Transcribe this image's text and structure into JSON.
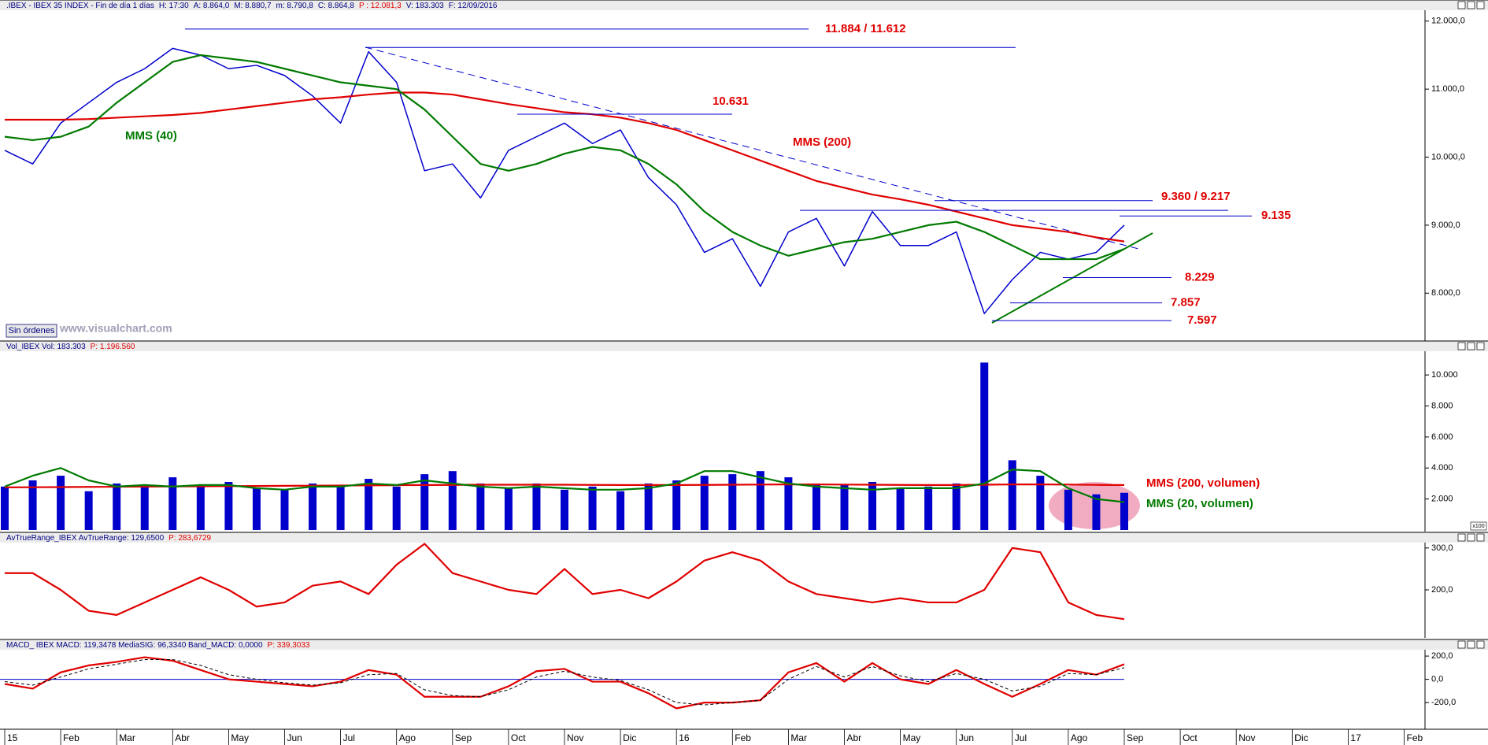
{
  "months": [
    "15",
    "Feb",
    "Mar",
    "Abr",
    "May",
    "Jun",
    "Jul",
    "Ago",
    "Sep",
    "Oct",
    "Nov",
    "Dic",
    "16",
    "Feb",
    "Mar",
    "Abr",
    "May",
    "Jun",
    "Jul",
    "Ago",
    "Sep",
    "Oct",
    "Nov",
    "Dic",
    "17",
    "Feb"
  ],
  "overlay": {
    "orders": "Sin órdenes",
    "site": "www.visualchart.com",
    "scale": "x100"
  },
  "chart_data": [
    {
      "type": "line",
      "title": [
        {
          "text": ".IBEX - IBEX 35 INDEX - Fin de día 1 días",
          "color": "#000080"
        },
        {
          "text": "H: 17:30",
          "color": "#000080"
        },
        {
          "text": "A: 8.864,0",
          "color": "#000080"
        },
        {
          "text": "M: 8.880,7",
          "color": "#000080"
        },
        {
          "text": "m: 8.790,8",
          "color": "#000080"
        },
        {
          "text": "C: 8.864,8",
          "color": "#000080"
        },
        {
          "text": "P : 12.081,3",
          "color": "#e00000"
        },
        {
          "text": "V: 183.303",
          "color": "#000080"
        },
        {
          "text": "F: 12/09/2016",
          "color": "#000080"
        }
      ],
      "ylim": [
        7320,
        12125
      ],
      "yticks": [
        {
          "value": 8000,
          "label": "8.000,0"
        },
        {
          "value": 9000,
          "label": "9.000,0"
        },
        {
          "value": 10000,
          "label": "10.000,0"
        },
        {
          "value": 11000,
          "label": "11.000,0"
        },
        {
          "value": 12000,
          "label": "12.000,0"
        }
      ],
      "x": [
        0,
        0.5,
        1,
        1.5,
        2,
        2.5,
        3,
        3.5,
        4,
        4.5,
        5,
        5.5,
        6,
        6.5,
        7,
        7.5,
        8,
        8.5,
        9,
        9.5,
        10,
        10.5,
        11,
        11.5,
        12,
        12.5,
        13,
        13.5,
        14,
        14.5,
        15,
        15.5,
        16,
        16.5,
        17,
        17.5,
        18,
        18.5,
        19,
        19.5,
        20
      ],
      "series": [
        {
          "color": "#0000cc",
          "values": [
            10100,
            9900,
            10500,
            10800,
            11100,
            11300,
            11600,
            11500,
            11300,
            11350,
            11200,
            10900,
            10500,
            11550,
            11100,
            9800,
            9900,
            9400,
            10100,
            10300,
            10500,
            10200,
            10400,
            9700,
            9300,
            8600,
            8800,
            8100,
            8900,
            9100,
            8400,
            9200,
            8700,
            8700,
            8900,
            7700,
            8200,
            8600,
            8500,
            8600,
            9000
          ]
        },
        {
          "name": "MMS (200)",
          "color": "#e00000",
          "values": [
            10550,
            10550,
            10550,
            10560,
            10580,
            10600,
            10620,
            10650,
            10700,
            10750,
            10800,
            10850,
            10880,
            10920,
            10950,
            10950,
            10920,
            10850,
            10780,
            10720,
            10660,
            10630,
            10580,
            10500,
            10400,
            10250,
            10100,
            9950,
            9800,
            9650,
            9550,
            9450,
            9380,
            9300,
            9200,
            9100,
            9000,
            8950,
            8900,
            8820,
            8760
          ]
        },
        {
          "name": "MMS (40)",
          "color": "#007a00",
          "values": [
            10300,
            10250,
            10300,
            10450,
            10800,
            11100,
            11400,
            11500,
            11450,
            11400,
            11300,
            11200,
            11100,
            11050,
            11000,
            10700,
            10300,
            9900,
            9800,
            9900,
            10050,
            10150,
            10100,
            9900,
            9600,
            9200,
            8900,
            8700,
            8550,
            8650,
            8750,
            8800,
            8900,
            9000,
            9050,
            8900,
            8700,
            8500,
            8500,
            8500,
            8650
          ]
        }
      ],
      "levels": [
        {
          "label": "11.884 / 11.612",
          "values": [
            11884,
            11612
          ]
        },
        {
          "label": "10.631",
          "values": [
            10631
          ]
        },
        {
          "label": "9.360 / 9.217",
          "values": [
            9360,
            9217
          ]
        },
        {
          "label": "9.135",
          "values": [
            9135
          ]
        },
        {
          "label": "8.229",
          "values": [
            8229
          ]
        },
        {
          "label": "7.857",
          "values": [
            7857
          ]
        },
        {
          "label": "7.597",
          "values": [
            7597
          ]
        }
      ]
    },
    {
      "type": "bar",
      "title": [
        {
          "text": "Vol_IBEX  Vol: 183.303",
          "color": "#000080"
        },
        {
          "text": "P: 1.196.560",
          "color": "#e00000"
        }
      ],
      "ylim": [
        0,
        11480
      ],
      "yticks": [
        {
          "value": 2000,
          "label": "2.000"
        },
        {
          "value": 4000,
          "label": "4.000"
        },
        {
          "value": 6000,
          "label": "6.000"
        },
        {
          "value": 8000,
          "label": "8.000"
        },
        {
          "value": 10000,
          "label": "10.000"
        }
      ],
      "x": [
        0,
        0.5,
        1,
        1.5,
        2,
        2.5,
        3,
        3.5,
        4,
        4.5,
        5,
        5.5,
        6,
        6.5,
        7,
        7.5,
        8,
        8.5,
        9,
        9.5,
        10,
        10.5,
        11,
        11.5,
        12,
        12.5,
        13,
        13.5,
        14,
        14.5,
        15,
        15.5,
        16,
        16.5,
        17,
        17.5,
        18,
        18.5,
        19,
        19.5,
        20
      ],
      "series": [
        {
          "color": "#0000cc",
          "values": [
            2800,
            3200,
            3500,
            2500,
            3000,
            2900,
            3400,
            2800,
            3100,
            2700,
            2600,
            3000,
            2900,
            3300,
            2800,
            3600,
            3800,
            3000,
            2700,
            3000,
            2600,
            2800,
            2500,
            3000,
            3200,
            3500,
            3600,
            3800,
            3400,
            3000,
            2900,
            3100,
            2700,
            2800,
            3000,
            10800,
            4500,
            3500,
            2600,
            2300,
            2400
          ]
        },
        {
          "name": "MMS (200, volumen)",
          "color": "#e00000",
          "values": [
            2750,
            2760,
            2770,
            2780,
            2790,
            2800,
            2810,
            2820,
            2830,
            2840,
            2850,
            2860,
            2870,
            2880,
            2890,
            2900,
            2910,
            2920,
            2920,
            2920,
            2920,
            2910,
            2900,
            2900,
            2900,
            2910,
            2920,
            2930,
            2940,
            2940,
            2930,
            2920,
            2910,
            2900,
            2900,
            2920,
            2940,
            2940,
            2930,
            2910,
            2900
          ]
        },
        {
          "name": "MMS (20, volumen)",
          "color": "#007a00",
          "values": [
            2800,
            3500,
            4000,
            3200,
            2800,
            2900,
            2800,
            2900,
            2900,
            2700,
            2600,
            2800,
            2800,
            3000,
            2900,
            3200,
            3000,
            2800,
            2700,
            2800,
            2700,
            2600,
            2600,
            2700,
            3000,
            3800,
            3800,
            3400,
            3000,
            2800,
            2700,
            2600,
            2700,
            2700,
            2700,
            3000,
            3900,
            3800,
            2700,
            2000,
            1800
          ]
        }
      ]
    },
    {
      "type": "line",
      "title": [
        {
          "text": "AvTrueRange_IBEX  AvTrueRange: 129,6500",
          "color": "#000080"
        },
        {
          "text": "P: 283,6729",
          "color": "#e00000"
        }
      ],
      "ylim": [
        89,
        311
      ],
      "yticks": [
        {
          "value": 200,
          "label": "200,0"
        },
        {
          "value": 300,
          "label": "300,0"
        }
      ],
      "x": [
        0,
        0.5,
        1,
        1.5,
        2,
        2.5,
        3,
        3.5,
        4,
        4.5,
        5,
        5.5,
        6,
        6.5,
        7,
        7.5,
        8,
        8.5,
        9,
        9.5,
        10,
        10.5,
        11,
        11.5,
        12,
        12.5,
        13,
        13.5,
        14,
        14.5,
        15,
        15.5,
        16,
        16.5,
        17,
        17.5,
        18,
        18.5,
        19,
        19.5,
        20
      ],
      "series": [
        {
          "color": "#e00000",
          "values": [
            240,
            240,
            200,
            150,
            140,
            170,
            200,
            230,
            200,
            160,
            170,
            210,
            220,
            190,
            260,
            310,
            240,
            220,
            200,
            190,
            250,
            190,
            200,
            180,
            220,
            270,
            290,
            270,
            220,
            190,
            180,
            170,
            180,
            170,
            170,
            200,
            300,
            290,
            170,
            140,
            130
          ]
        }
      ]
    },
    {
      "type": "line",
      "title": [
        {
          "text": "MACD_ IBEX  MACD: 119,3478  MediaSIG: 96,3340  Band_MACD: 0,0000",
          "color": "#000080"
        },
        {
          "text": "P: 339,3033",
          "color": "#e00000"
        }
      ],
      "ylim": [
        -416,
        248
      ],
      "yticks": [
        {
          "value": -200,
          "label": "-200,0"
        },
        {
          "value": 0,
          "label": "0,0"
        },
        {
          "value": 200,
          "label": "200,0"
        }
      ],
      "band": 0,
      "x": [
        0,
        0.5,
        1,
        1.5,
        2,
        2.5,
        3,
        3.5,
        4,
        4.5,
        5,
        5.5,
        6,
        6.5,
        7,
        7.5,
        8,
        8.5,
        9,
        9.5,
        10,
        10.5,
        11,
        11.5,
        12,
        12.5,
        13,
        13.5,
        14,
        14.5,
        15,
        15.5,
        16,
        16.5,
        17,
        17.5,
        18,
        18.5,
        19,
        19.5,
        20
      ],
      "series": [
        {
          "color": "#e00000",
          "values": [
            -40,
            -80,
            60,
            120,
            150,
            190,
            160,
            80,
            0,
            -20,
            -40,
            -60,
            -20,
            80,
            40,
            -150,
            -150,
            -150,
            -60,
            70,
            90,
            -20,
            -20,
            -120,
            -250,
            -200,
            -200,
            -180,
            60,
            140,
            -20,
            140,
            0,
            -40,
            80,
            -40,
            -150,
            -40,
            80,
            40,
            130
          ]
        },
        {
          "color": "#000000",
          "dash": true,
          "values": [
            -20,
            -50,
            20,
            90,
            130,
            170,
            170,
            120,
            40,
            0,
            -30,
            -50,
            -30,
            40,
            50,
            -90,
            -140,
            -150,
            -90,
            20,
            70,
            20,
            -10,
            -90,
            -200,
            -220,
            -200,
            -180,
            0,
            110,
            20,
            110,
            30,
            -20,
            50,
            0,
            -100,
            -60,
            50,
            40,
            100
          ]
        }
      ]
    }
  ]
}
